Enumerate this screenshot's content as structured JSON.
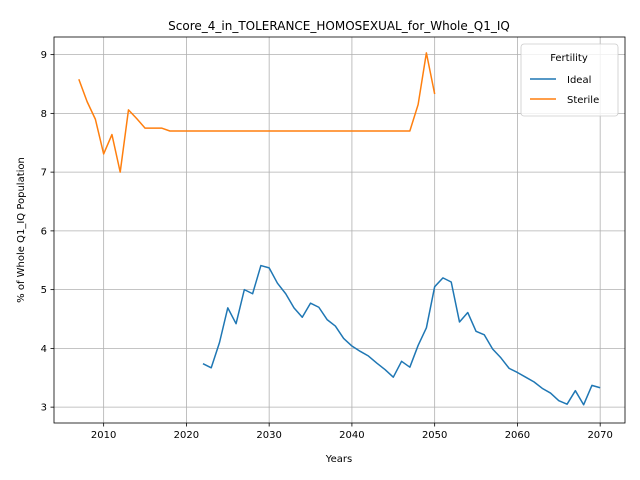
{
  "chart_data": {
    "type": "line",
    "title": "Score_4_in_TOLERANCE_HOMOSEXUAL_for_Whole_Q1_IQ",
    "xlabel": "Years",
    "ylabel": "% of Whole Q1_IQ Population",
    "xlim": [
      2004,
      2073
    ],
    "ylim": [
      2.73,
      9.3
    ],
    "xticks": [
      2010,
      2020,
      2030,
      2040,
      2050,
      2060,
      2070
    ],
    "yticks": [
      3,
      4,
      5,
      6,
      7,
      8,
      9
    ],
    "grid": true,
    "legend": {
      "title": "Fertility",
      "position": "top-right"
    },
    "series": [
      {
        "name": "Ideal",
        "color": "#1f77b4",
        "x": [
          2022,
          2023,
          2024,
          2025,
          2026,
          2027,
          2028,
          2029,
          2030,
          2031,
          2032,
          2033,
          2034,
          2035,
          2036,
          2037,
          2038,
          2039,
          2040,
          2041,
          2042,
          2043,
          2044,
          2045,
          2046,
          2047,
          2048,
          2049,
          2050,
          2051,
          2052,
          2053,
          2054,
          2055,
          2056,
          2057,
          2058,
          2059,
          2060,
          2061,
          2062,
          2063,
          2064,
          2065,
          2066,
          2067,
          2068,
          2069,
          2070
        ],
        "values": [
          3.74,
          3.67,
          4.1,
          4.69,
          4.42,
          5.0,
          4.93,
          5.41,
          5.37,
          5.11,
          4.93,
          4.69,
          4.53,
          4.77,
          4.7,
          4.49,
          4.38,
          4.17,
          4.04,
          3.95,
          3.87,
          3.75,
          3.64,
          3.51,
          3.78,
          3.68,
          4.05,
          4.35,
          5.05,
          5.2,
          5.13,
          4.45,
          4.61,
          4.29,
          4.23,
          3.99,
          3.84,
          3.66,
          3.59,
          3.51,
          3.43,
          3.32,
          3.24,
          3.11,
          3.05,
          3.28,
          3.04,
          3.37,
          3.33
        ]
      },
      {
        "name": "Sterile",
        "color": "#ff7f0e",
        "x": [
          2007,
          2008,
          2009,
          2010,
          2011,
          2012,
          2013,
          2014,
          2015,
          2016,
          2017,
          2018,
          2019,
          2020,
          2021,
          2022,
          2023,
          2024,
          2025,
          2026,
          2027,
          2028,
          2029,
          2030,
          2031,
          2032,
          2033,
          2034,
          2035,
          2036,
          2037,
          2038,
          2039,
          2040,
          2041,
          2042,
          2043,
          2044,
          2045,
          2046,
          2047,
          2048,
          2049,
          2050
        ],
        "values": [
          8.58,
          8.2,
          7.9,
          7.31,
          7.64,
          7.0,
          8.06,
          7.91,
          7.75,
          7.75,
          7.75,
          7.7,
          7.7,
          7.7,
          7.7,
          7.7,
          7.7,
          7.7,
          7.7,
          7.7,
          7.7,
          7.7,
          7.7,
          7.7,
          7.7,
          7.7,
          7.7,
          7.7,
          7.7,
          7.7,
          7.7,
          7.7,
          7.7,
          7.7,
          7.7,
          7.7,
          7.7,
          7.7,
          7.7,
          7.7,
          7.7,
          8.15,
          9.03,
          8.33
        ]
      }
    ]
  }
}
